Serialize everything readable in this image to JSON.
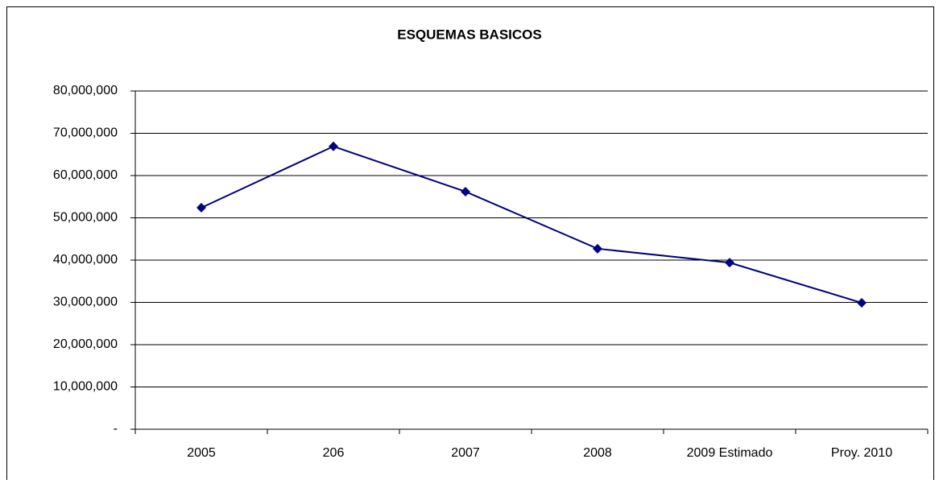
{
  "chart_data": {
    "type": "line",
    "title": "ESQUEMAS  BASICOS",
    "categories": [
      "2005",
      "206",
      "2007",
      "2008",
      "2009 Estimado",
      "Proy. 2010"
    ],
    "values": [
      52400000,
      66900000,
      56200000,
      42700000,
      39400000,
      29900000
    ],
    "color": "#000080",
    "ylim": [
      0,
      80000000
    ],
    "yticks": [
      {
        "value": 0,
        "label": "-"
      },
      {
        "value": 10000000,
        "label": "10,000,000"
      },
      {
        "value": 20000000,
        "label": "20,000,000"
      },
      {
        "value": 30000000,
        "label": "30,000,000"
      },
      {
        "value": 40000000,
        "label": "40,000,000"
      },
      {
        "value": 50000000,
        "label": "50,000,000"
      },
      {
        "value": 60000000,
        "label": "60,000,000"
      },
      {
        "value": 70000000,
        "label": "70,000,000"
      },
      {
        "value": 80000000,
        "label": "80,000,000"
      }
    ],
    "grid": true
  }
}
